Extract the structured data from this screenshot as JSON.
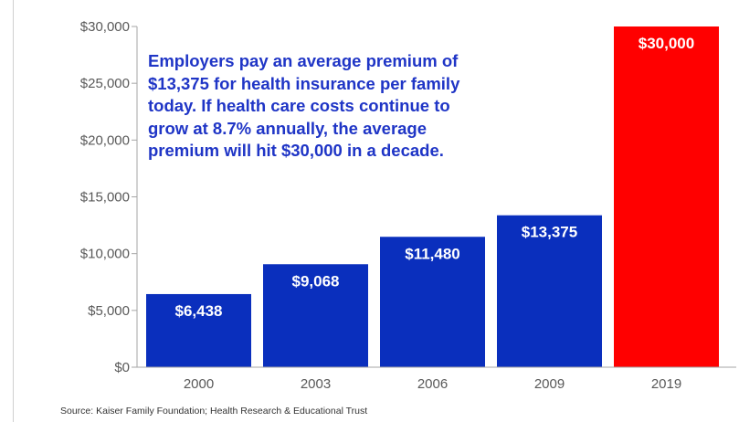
{
  "chart_data": {
    "type": "bar",
    "categories": [
      "2000",
      "2003",
      "2006",
      "2009",
      "2019"
    ],
    "values": [
      6438,
      9068,
      11480,
      13375,
      30000
    ],
    "data_labels": [
      "$6,438",
      "$9,068",
      "$11,480",
      "$13,375",
      "$30,000"
    ],
    "bar_colors": [
      "#0a2fbd",
      "#0a2fbd",
      "#0a2fbd",
      "#0a2fbd",
      "#ff0000"
    ],
    "ylim": [
      0,
      30000
    ],
    "yticks": [
      0,
      5000,
      10000,
      15000,
      20000,
      25000,
      30000
    ],
    "ytick_labels": [
      "$0",
      "$5,000",
      "$10,000",
      "$15,000",
      "$20,000",
      "$25,000",
      "$30,000"
    ],
    "grid": false,
    "title": "",
    "xlabel": "",
    "ylabel": "",
    "annotation": "Employers pay an average premium of\n$13,375 for health insurance per family\ntoday.  If health care costs continue to\ngrow at 8.7% annually, the average\npremium will hit $30,000 in a decade.",
    "source": "Source: Kaiser Family Foundation; Health Research & Educational Trust"
  },
  "colors": {
    "bar_blue": "#0a2fbd",
    "bar_red": "#ff0000",
    "annotation_text": "#1f35c6",
    "axis": "#a6a6a6",
    "tick_text": "#595959"
  }
}
